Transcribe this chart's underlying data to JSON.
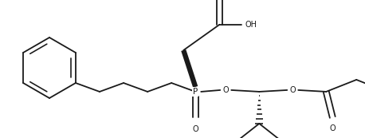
{
  "bg_color": "#ffffff",
  "line_color": "#1a1a1a",
  "lw": 1.3,
  "figsize": [
    4.58,
    1.73
  ],
  "dpi": 100,
  "xlim": [
    0,
    458
  ],
  "ylim": [
    0,
    173
  ]
}
